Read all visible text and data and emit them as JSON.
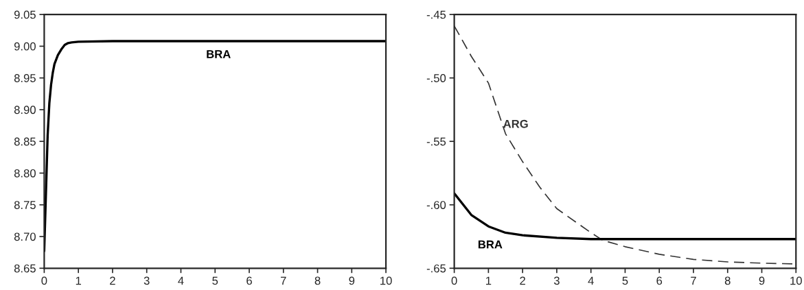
{
  "chart_data": [
    {
      "type": "line",
      "xlim": [
        0,
        10
      ],
      "ylim": [
        8.65,
        9.05
      ],
      "xticks": [
        0,
        1,
        2,
        3,
        4,
        5,
        6,
        7,
        8,
        9,
        10
      ],
      "yticks": [
        {
          "value": 8.65,
          "label": "8.65"
        },
        {
          "value": 8.7,
          "label": "8.70"
        },
        {
          "value": 8.75,
          "label": "8.75"
        },
        {
          "value": 8.8,
          "label": "8.80"
        },
        {
          "value": 8.85,
          "label": "8.85"
        },
        {
          "value": 8.9,
          "label": "8.90"
        },
        {
          "value": 8.95,
          "label": "8.95"
        },
        {
          "value": 9.0,
          "label": "9.00"
        },
        {
          "value": 9.05,
          "label": "9.05"
        }
      ],
      "grid": false,
      "legend": false,
      "series": [
        {
          "name": "BRA",
          "color": "#000000",
          "line_style": "solid",
          "x": [
            0,
            0.05,
            0.1,
            0.15,
            0.2,
            0.25,
            0.3,
            0.4,
            0.5,
            0.6,
            0.7,
            0.8,
            1,
            2,
            4,
            6,
            8,
            10
          ],
          "values": [
            8.677,
            8.768,
            8.859,
            8.91,
            8.939,
            8.958,
            8.972,
            8.986,
            8.995,
            9.002,
            9.005,
            9.006,
            9.007,
            9.008,
            9.008,
            9.008,
            9.008,
            9.008
          ]
        }
      ]
    },
    {
      "type": "line",
      "xlim": [
        0,
        10
      ],
      "ylim": [
        -0.65,
        -0.45
      ],
      "xticks": [
        0,
        1,
        2,
        3,
        4,
        5,
        6,
        7,
        8,
        9,
        10
      ],
      "yticks": [
        {
          "value": -0.65,
          "label": "-.65"
        },
        {
          "value": -0.6,
          "label": "-.60"
        },
        {
          "value": -0.55,
          "label": "-.55"
        },
        {
          "value": -0.5,
          "label": "-.50"
        },
        {
          "value": -0.45,
          "label": "-.45"
        }
      ],
      "grid": false,
      "legend": false,
      "series": [
        {
          "name": "ARG",
          "color": "#333333",
          "line_style": "dashed",
          "x": [
            0,
            0.5,
            1,
            1.5,
            2,
            2.5,
            3,
            4,
            4.35,
            5,
            6,
            7,
            8,
            9,
            10
          ],
          "values": [
            -0.459,
            -0.483,
            -0.504,
            -0.544,
            -0.566,
            -0.586,
            -0.603,
            -0.622,
            -0.628,
            -0.633,
            -0.639,
            -0.643,
            -0.645,
            -0.646,
            -0.6466
          ]
        },
        {
          "name": "BRA",
          "color": "#000000",
          "line_style": "solid",
          "x": [
            0,
            0.5,
            1,
            1.5,
            2,
            3,
            4,
            6,
            8,
            10
          ],
          "values": [
            -0.591,
            -0.608,
            -0.617,
            -0.622,
            -0.624,
            -0.626,
            -0.627,
            -0.627,
            -0.627,
            -0.627
          ]
        }
      ]
    }
  ]
}
